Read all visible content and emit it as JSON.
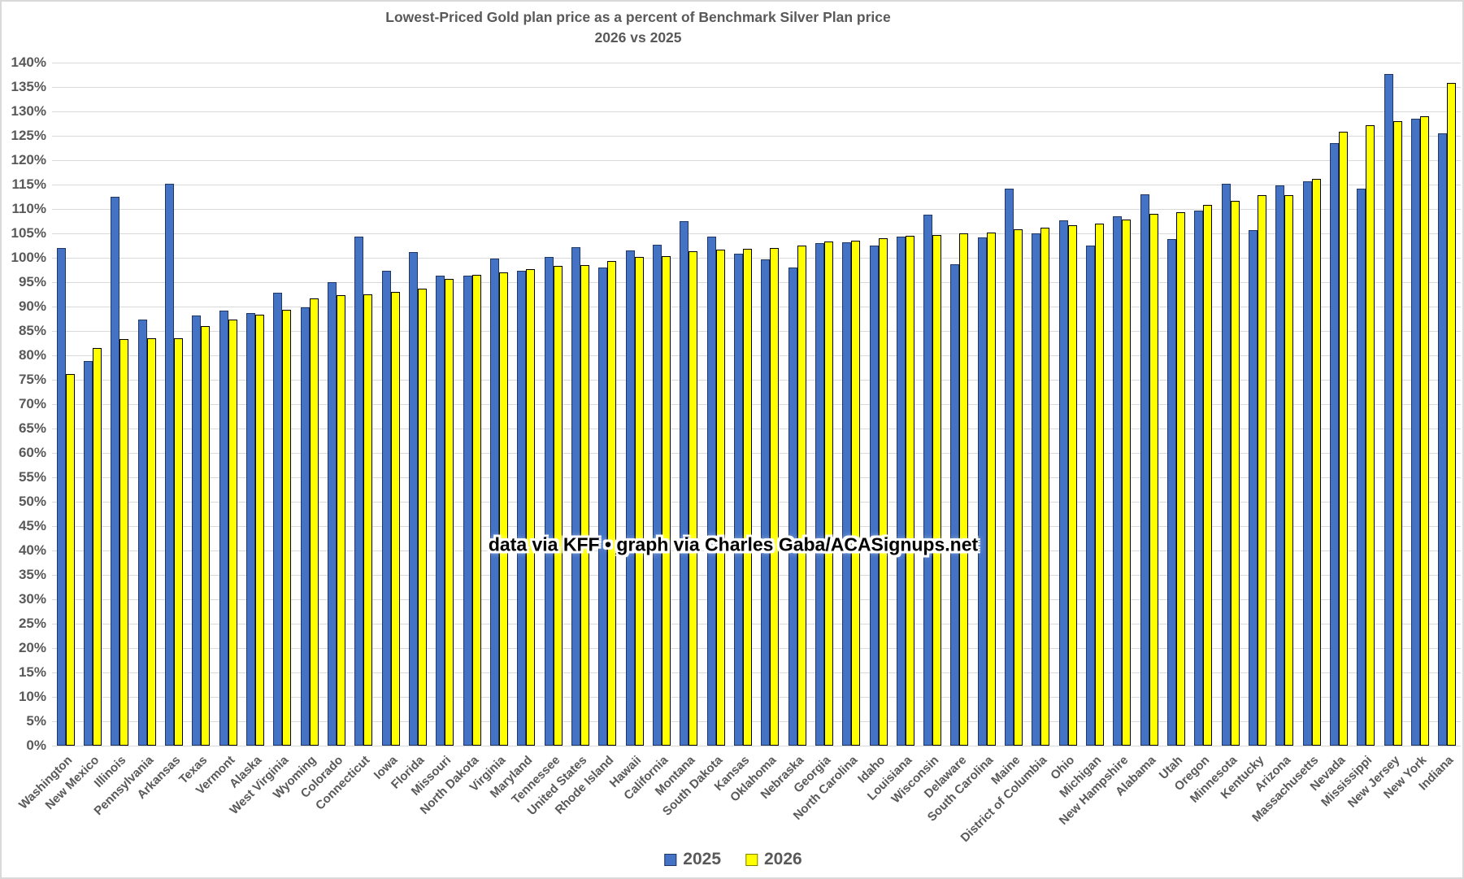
{
  "title": {
    "line1": "Lowest-Priced Gold plan price as a percent of Benchmark Silver Plan price",
    "line2": "2026 vs 2025"
  },
  "watermark": "data via KFF • graph via Charles Gaba/ACASignups.net",
  "legend": {
    "items": [
      {
        "label": "2025",
        "key": "s2025",
        "color": "#4472C4"
      },
      {
        "label": "2026",
        "key": "s2026",
        "color": "#FFFF00"
      }
    ]
  },
  "colors": {
    "bar_2025_fill": "#4472C4",
    "bar_2025_border": "#203864",
    "bar_2026_fill": "#FFFF00",
    "bar_2026_border": "#000000",
    "gridline": "#D9D9D9",
    "axis_text": "#595959"
  },
  "chart_data": {
    "type": "bar",
    "title": "Lowest-Priced Gold plan price as a percent of Benchmark Silver Plan price",
    "subtitle": "2026 vs 2025",
    "ylim": [
      0,
      140
    ],
    "ytick_step": 5,
    "ytick_suffix": "%",
    "grid": true,
    "legend_position": "bottom",
    "categories": [
      "Washington",
      "New Mexico",
      "Illinois",
      "Pennsylvania",
      "Arkansas",
      "Texas",
      "Vermont",
      "Alaska",
      "West Virginia",
      "Wyoming",
      "Colorado",
      "Connecticut",
      "Iowa",
      "Florida",
      "Missouri",
      "North Dakota",
      "Virginia",
      "Maryland",
      "Tennessee",
      "United States",
      "Rhode Island",
      "Hawaii",
      "California",
      "Montana",
      "South Dakota",
      "Kansas",
      "Oklahoma",
      "Nebraska",
      "Georgia",
      "North Carolina",
      "Idaho",
      "Louisiana",
      "Wisconsin",
      "Delaware",
      "South Carolina",
      "Maine",
      "District of Columbia",
      "Ohio",
      "Michigan",
      "New Hampshire",
      "Alabama",
      "Utah",
      "Oregon",
      "Minnesota",
      "Kentucky",
      "Arizona",
      "Massachusetts",
      "Nevada",
      "Mississippi",
      "New Jersey",
      "New York",
      "Indiana"
    ],
    "series": [
      {
        "name": "2025",
        "key": "s2025",
        "color": "#4472C4",
        "values": [
          102.0,
          78.9,
          112.5,
          87.4,
          115.2,
          88.2,
          89.1,
          88.7,
          92.9,
          89.8,
          95.0,
          104.4,
          97.3,
          101.2,
          96.4,
          96.3,
          99.8,
          97.3,
          100.1,
          102.1,
          98.0,
          101.5,
          102.7,
          107.5,
          104.3,
          100.9,
          99.7,
          98.0,
          103.0,
          103.1,
          102.5,
          104.3,
          108.8,
          98.7,
          104.1,
          114.2,
          105.0,
          107.6,
          102.5,
          108.5,
          113.0,
          103.8,
          109.6,
          115.2,
          105.6,
          114.8,
          115.6,
          123.5,
          114.1,
          137.7,
          128.5,
          125.5
        ]
      },
      {
        "name": "2026",
        "key": "s2026",
        "color": "#FFFF00",
        "values": [
          76.1,
          81.5,
          83.3,
          83.5,
          83.5,
          86.0,
          87.3,
          88.3,
          89.4,
          91.6,
          92.4,
          92.5,
          93.0,
          93.7,
          95.6,
          96.5,
          97.0,
          97.7,
          98.3,
          98.5,
          99.3,
          100.1,
          100.4,
          101.4,
          101.6,
          101.8,
          102.0,
          102.5,
          103.4,
          103.5,
          104.0,
          104.5,
          104.6,
          105.0,
          105.2,
          105.9,
          106.2,
          106.7,
          107.0,
          107.8,
          109.0,
          109.3,
          110.8,
          111.6,
          112.8,
          112.8,
          116.2,
          125.8,
          127.2,
          128.0,
          129.0,
          135.9
        ]
      }
    ]
  }
}
